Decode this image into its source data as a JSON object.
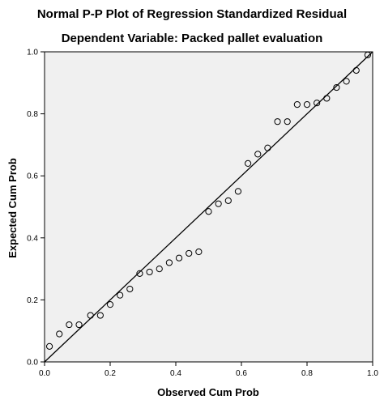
{
  "chart_data": {
    "type": "scatter",
    "title": "Normal P-P Plot of Regression Standardized Residual",
    "subtitle": "Dependent Variable: Packed pallet evaluation",
    "xlabel": "Observed Cum Prob",
    "ylabel": "Expected Cum Prob",
    "xlim": [
      0.0,
      1.0
    ],
    "ylim": [
      0.0,
      1.0
    ],
    "xticks": [
      0.0,
      0.2,
      0.4,
      0.6,
      0.8,
      1.0
    ],
    "yticks": [
      0.0,
      0.2,
      0.4,
      0.6,
      0.8,
      1.0
    ],
    "xtick_labels": [
      "0.0",
      "0.2",
      "0.4",
      "0.6",
      "0.8",
      "1.0"
    ],
    "ytick_labels": [
      "0.0",
      "0.2",
      "0.4",
      "0.6",
      "0.8",
      "1.0"
    ],
    "grid": false,
    "reference_line": {
      "from": [
        0.0,
        0.0
      ],
      "to": [
        1.0,
        1.0
      ]
    },
    "points": [
      {
        "x": 0.015,
        "y": 0.05
      },
      {
        "x": 0.045,
        "y": 0.09
      },
      {
        "x": 0.075,
        "y": 0.12
      },
      {
        "x": 0.105,
        "y": 0.12
      },
      {
        "x": 0.14,
        "y": 0.15
      },
      {
        "x": 0.17,
        "y": 0.15
      },
      {
        "x": 0.2,
        "y": 0.185
      },
      {
        "x": 0.23,
        "y": 0.215
      },
      {
        "x": 0.26,
        "y": 0.235
      },
      {
        "x": 0.29,
        "y": 0.285
      },
      {
        "x": 0.32,
        "y": 0.29
      },
      {
        "x": 0.35,
        "y": 0.3
      },
      {
        "x": 0.38,
        "y": 0.32
      },
      {
        "x": 0.41,
        "y": 0.335
      },
      {
        "x": 0.44,
        "y": 0.35
      },
      {
        "x": 0.47,
        "y": 0.355
      },
      {
        "x": 0.5,
        "y": 0.485
      },
      {
        "x": 0.53,
        "y": 0.51
      },
      {
        "x": 0.56,
        "y": 0.52
      },
      {
        "x": 0.59,
        "y": 0.55
      },
      {
        "x": 0.62,
        "y": 0.64
      },
      {
        "x": 0.65,
        "y": 0.67
      },
      {
        "x": 0.68,
        "y": 0.69
      },
      {
        "x": 0.71,
        "y": 0.775
      },
      {
        "x": 0.74,
        "y": 0.775
      },
      {
        "x": 0.77,
        "y": 0.83
      },
      {
        "x": 0.8,
        "y": 0.83
      },
      {
        "x": 0.83,
        "y": 0.835
      },
      {
        "x": 0.86,
        "y": 0.85
      },
      {
        "x": 0.89,
        "y": 0.885
      },
      {
        "x": 0.92,
        "y": 0.905
      },
      {
        "x": 0.95,
        "y": 0.94
      },
      {
        "x": 0.985,
        "y": 0.99
      }
    ],
    "colors": {
      "plot_background": "#f0f0f0",
      "marker_stroke": "#000000",
      "line": "#000000",
      "axis": "#000000"
    }
  }
}
